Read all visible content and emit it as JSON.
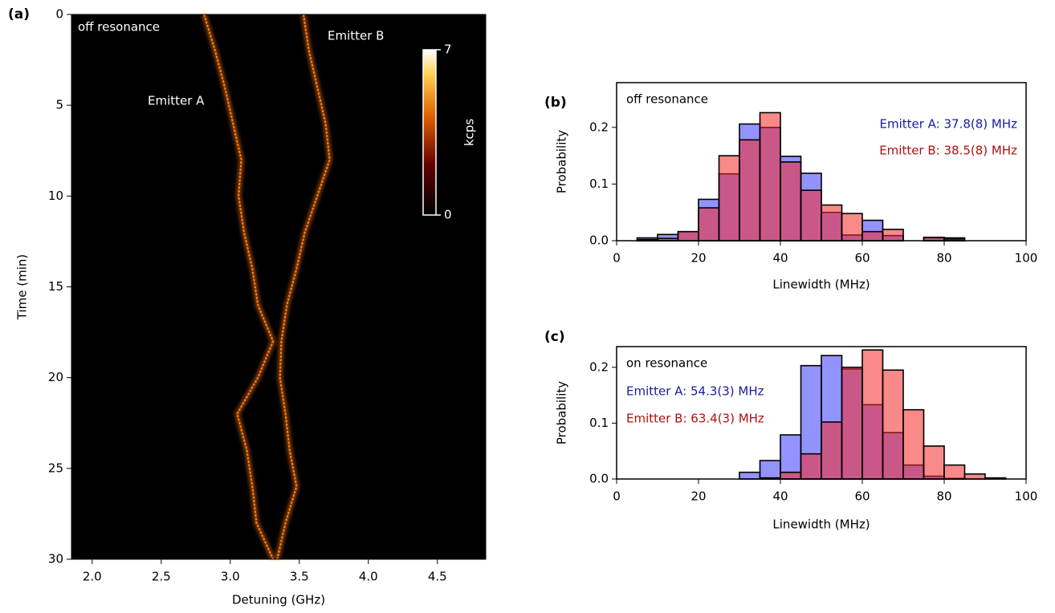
{
  "chart_data": [
    {
      "type": "heatmap",
      "panel": "(a)",
      "xlabel": "Detuning (GHz)",
      "ylabel": "Time (min)",
      "xlim": [
        1.85,
        4.85
      ],
      "xticks": [
        {
          "value": 2,
          "label": "2.0"
        },
        {
          "value": 2.5,
          "label": "2.5"
        },
        {
          "value": 3,
          "label": "3.0"
        },
        {
          "value": 3.5,
          "label": "3.5"
        },
        {
          "value": 4,
          "label": "4.0"
        },
        {
          "value": 4.5,
          "label": "4.5"
        }
      ],
      "ylim": [
        0,
        30
      ],
      "yticks": [
        0,
        5,
        10,
        15,
        20,
        25,
        30
      ],
      "annotations": [
        "off resonance",
        "Emitter A",
        "Emitter B"
      ],
      "x": [
        0,
        2,
        4,
        6,
        8,
        10,
        12,
        14,
        16,
        18,
        20,
        22,
        24,
        26,
        28,
        30
      ],
      "series": [
        {
          "color": "#ff7a10",
          "values": [
            2.81,
            2.89,
            2.96,
            3.02,
            3.08,
            3.06,
            3.1,
            3.16,
            3.2,
            3.31,
            3.2,
            3.05,
            3.12,
            3.16,
            3.19,
            3.31
          ]
        },
        {
          "color": "#ff7a10",
          "values": [
            3.53,
            3.57,
            3.63,
            3.69,
            3.72,
            3.63,
            3.54,
            3.48,
            3.41,
            3.37,
            3.36,
            3.4,
            3.43,
            3.48,
            3.4,
            3.34
          ]
        }
      ],
      "colorbar": {
        "label": "kcps",
        "lim": [
          0,
          7
        ],
        "ticks": [
          0,
          7
        ]
      }
    },
    {
      "type": "histogram",
      "panel": "(b)",
      "annotation": "off resonance",
      "xlabel": "Linewidth (MHz)",
      "ylabel": "Probability",
      "bins": [
        0,
        5,
        10,
        15,
        20,
        25,
        30,
        35,
        40,
        45,
        50,
        55,
        60,
        65,
        70,
        75,
        80,
        85,
        90,
        95,
        100
      ],
      "xlim": [
        0,
        100
      ],
      "xticks": [
        0,
        20,
        40,
        60,
        80,
        100
      ],
      "ylim": [
        0,
        0.279
      ],
      "yticks": [
        {
          "value": 0,
          "label": "0.0"
        },
        {
          "value": 0.1,
          "label": "0.1"
        },
        {
          "value": 0.2,
          "label": "0.2"
        }
      ],
      "series": [
        {
          "name": "Emitter A: 37.8(8) MHz",
          "color": "rgba(40,40,255,0.5)",
          "label_color": "#1a1aa0",
          "values": [
            0,
            0.005,
            0.011,
            0.016,
            0.073,
            0.118,
            0.206,
            0.2,
            0.149,
            0.119,
            0.05,
            0.01,
            0.036,
            0.009,
            0,
            0.005,
            0.005,
            0,
            0,
            0
          ]
        },
        {
          "name": "Emitter B: 38.5(8) MHz",
          "color": "rgba(245,40,40,0.55)",
          "label_color": "#b01010",
          "values": [
            0,
            0.002,
            0.004,
            0.016,
            0.058,
            0.15,
            0.178,
            0.226,
            0.139,
            0.089,
            0.063,
            0.048,
            0.016,
            0.02,
            0,
            0.006,
            0.003,
            0,
            0,
            0
          ]
        }
      ]
    },
    {
      "type": "histogram",
      "panel": "(c)",
      "annotation": "on resonance",
      "xlabel": "Linewidth (MHz)",
      "ylabel": "Probability",
      "bins": [
        0,
        5,
        10,
        15,
        20,
        25,
        30,
        35,
        40,
        45,
        50,
        55,
        60,
        65,
        70,
        75,
        80,
        85,
        90,
        95,
        100
      ],
      "xlim": [
        0,
        100
      ],
      "xticks": [
        0,
        20,
        40,
        60,
        80,
        100
      ],
      "ylim": [
        0,
        0.237
      ],
      "yticks": [
        {
          "value": 0,
          "label": "0.0"
        },
        {
          "value": 0.1,
          "label": "0.1"
        },
        {
          "value": 0.2,
          "label": "0.2"
        }
      ],
      "series": [
        {
          "name": "Emitter A: 54.3(3) MHz",
          "color": "rgba(40,40,255,0.5)",
          "label_color": "#1a1aa0",
          "values": [
            0,
            0,
            0,
            0,
            0,
            0,
            0.012,
            0.033,
            0.079,
            0.203,
            0.221,
            0.197,
            0.133,
            0.083,
            0.025,
            0.005,
            0.001,
            0,
            0,
            0
          ]
        },
        {
          "name": "Emitter B: 63.4(3) MHz",
          "color": "rgba(245,40,40,0.55)",
          "label_color": "#b01010",
          "values": [
            0,
            0,
            0,
            0,
            0,
            0,
            0,
            0.002,
            0.012,
            0.045,
            0.102,
            0.2,
            0.231,
            0.195,
            0.124,
            0.059,
            0.025,
            0.009,
            0.002,
            0
          ]
        }
      ]
    }
  ]
}
